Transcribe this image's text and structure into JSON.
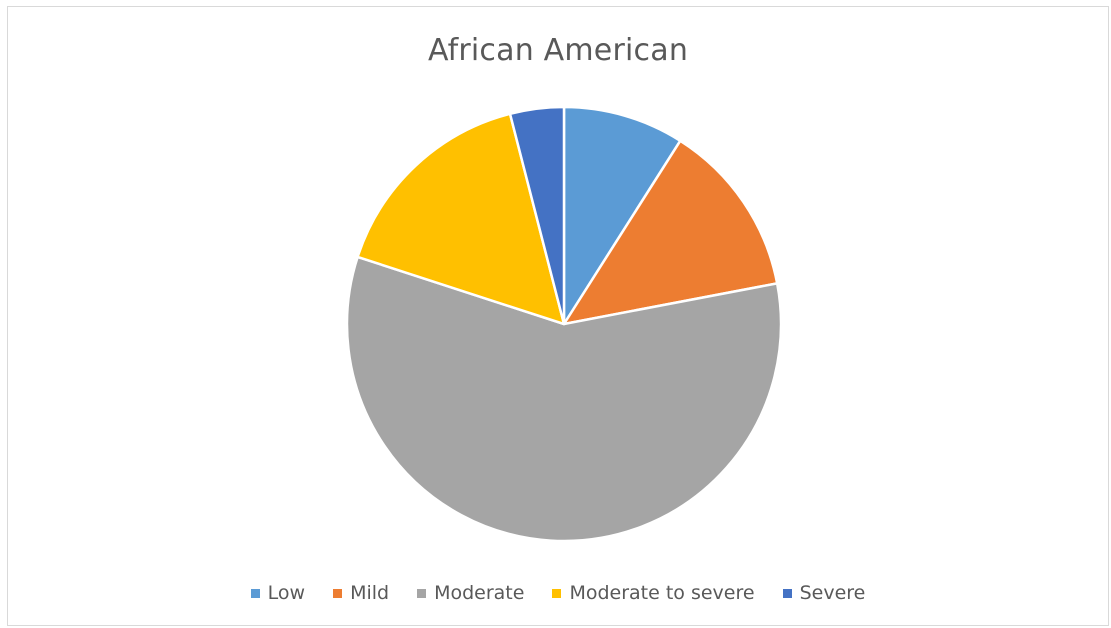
{
  "chart_data": {
    "type": "pie",
    "title": "African American",
    "categories": [
      "Low",
      "Mild",
      "Moderate",
      "Moderate to severe",
      "Severe"
    ],
    "values": [
      9,
      13,
      58,
      16,
      4
    ],
    "colors": [
      "#5b9bd5",
      "#ed7d31",
      "#a5a5a5",
      "#ffc000",
      "#4472c4"
    ],
    "start_angle_deg": 0,
    "direction": "clockwise",
    "legend_position": "bottom",
    "slice_border_color": "#ffffff"
  }
}
